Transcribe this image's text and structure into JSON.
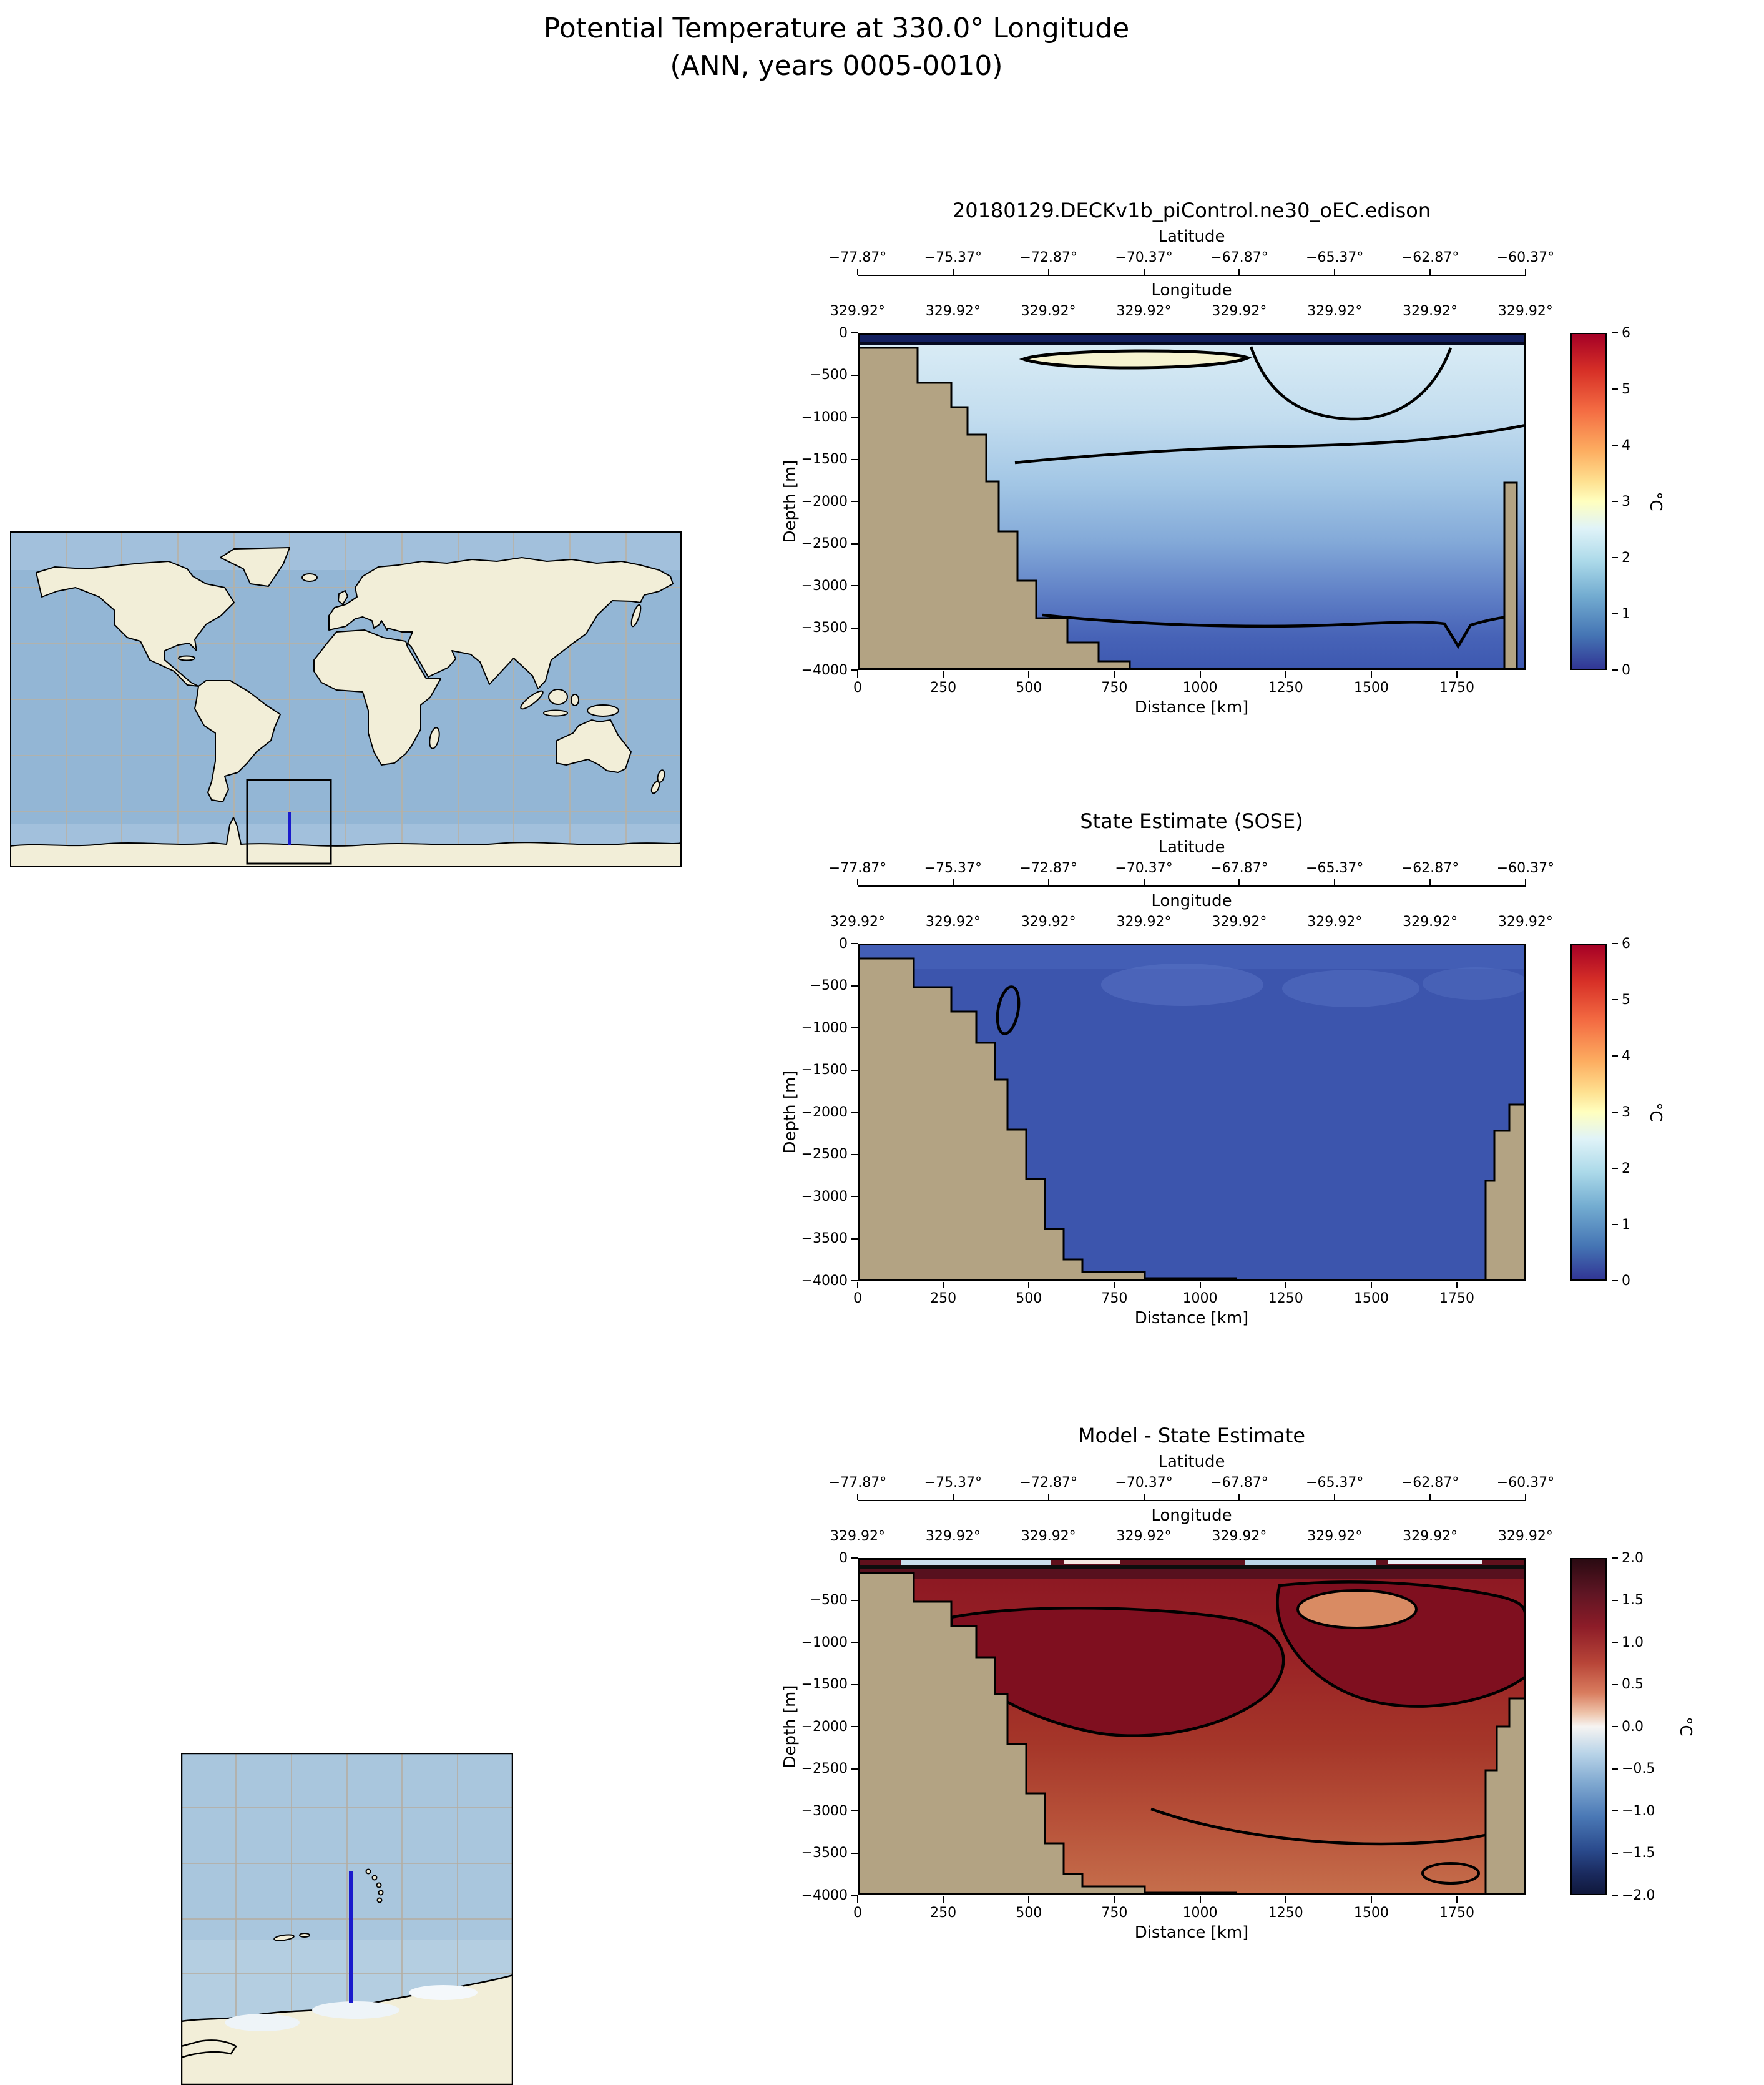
{
  "title": "Potential Temperature at 330.0° Longitude",
  "subtitle": "(ANN, years 0005-0010)",
  "panels": {
    "model": {
      "title": "20180129.DECKv1b_piControl.ne30_oEC.edison"
    },
    "sose": {
      "title": "State Estimate (SOSE)"
    },
    "diff": {
      "title": "Model - State Estimate"
    }
  },
  "axes": {
    "latitude_label": "Latitude",
    "latitude_ticks": [
      "−77.87°",
      "−75.37°",
      "−72.87°",
      "−70.37°",
      "−67.87°",
      "−65.37°",
      "−62.87°",
      "−60.37°"
    ],
    "longitude_label": "Longitude",
    "longitude_ticks": [
      "329.92°",
      "329.92°",
      "329.92°",
      "329.92°",
      "329.92°",
      "329.92°",
      "329.92°",
      "329.92°"
    ],
    "depth_label": "Depth [m]",
    "depth_ticks": [
      "0",
      "−500",
      "−1000",
      "−1500",
      "−2000",
      "−2500",
      "−3000",
      "−3500",
      "−4000"
    ],
    "distance_label": "Distance [km]",
    "distance_ticks": [
      "0",
      "250",
      "500",
      "750",
      "1000",
      "1250",
      "1500",
      "1750"
    ]
  },
  "colorbar_temp": {
    "label": "°C",
    "ticks": [
      "6",
      "5",
      "4",
      "3",
      "2",
      "1",
      "0"
    ]
  },
  "colorbar_diff": {
    "label": "°C",
    "ticks": [
      "2.0",
      "1.5",
      "1.0",
      "0.5",
      "0.0",
      "−0.5",
      "−1.0",
      "−1.5",
      "−2.0"
    ]
  },
  "colors": {
    "land": "#b3a383",
    "map_ocean": "#93b6d5",
    "map_land": "#f2eed8",
    "transect_line": "#1a1acc"
  },
  "chart_data": [
    {
      "type": "heatmap",
      "panel": "model",
      "title": "20180129.DECKv1b_piControl.ne30_oEC.edison",
      "xlabel": "Distance [km]",
      "ylabel": "Depth [m]",
      "x_range_km": [
        0,
        1950
      ],
      "y_range_m": [
        -4000,
        0
      ],
      "x_ticks_km": [
        0,
        250,
        500,
        750,
        1000,
        1250,
        1500,
        1750
      ],
      "y_ticks_m": [
        0,
        -500,
        -1000,
        -1500,
        -2000,
        -2500,
        -3000,
        -3500,
        -4000
      ],
      "latitude_ticks_deg": [
        -77.87,
        -75.37,
        -72.87,
        -70.37,
        -67.87,
        -65.37,
        -62.87,
        -60.37
      ],
      "longitude_deg": 329.92,
      "colormap": "RdYlBu_r",
      "color_range_C": [
        0,
        6
      ],
      "colorbar_label": "°C",
      "features": {
        "surface_layer": "cold ~0-0.5°C (dark navy) band in the top ~150 m across the section",
        "warm_subsurface_lens": "~2.5-3°C pale-yellow lens between ~450-1150 km at ~150-350 m depth, enclosed by a thick black contour",
        "interior": "~1.5-2°C light blue from 500-2500 m cooling with depth; black contour near -1300 m and near -3400 m",
        "bathymetry": "Antarctic continental-slope staircase from 0 km (surface) to ~800 km (4000 m); narrow topographic column near 1890 km below ~1800 m"
      },
      "depth_profile_estimate_C": {
        "0": 0.3,
        "-250": 2.6,
        "-500": 2.1,
        "-1000": 1.9,
        "-1500": 1.7,
        "-2000": 1.5,
        "-2500": 1.3,
        "-3000": 1.1,
        "-3500": 0.9,
        "-4000": 0.8
      }
    },
    {
      "type": "heatmap",
      "panel": "sose",
      "title": "State Estimate (SOSE)",
      "xlabel": "Distance [km]",
      "ylabel": "Depth [m]",
      "x_range_km": [
        0,
        1950
      ],
      "y_range_m": [
        -4000,
        0
      ],
      "x_ticks_km": [
        0,
        250,
        500,
        750,
        1000,
        1250,
        1500,
        1750
      ],
      "y_ticks_m": [
        0,
        -500,
        -1000,
        -1500,
        -2000,
        -2500,
        -3000,
        -3500,
        -4000
      ],
      "latitude_ticks_deg": [
        -77.87,
        -75.37,
        -72.87,
        -70.37,
        -67.87,
        -65.37,
        -62.87,
        -60.37
      ],
      "longitude_deg": 329.92,
      "colormap": "RdYlBu_r",
      "color_range_C": [
        0,
        6
      ],
      "colorbar_label": "°C",
      "features": {
        "interior": "nearly uniform cold water ~0.2-0.8°C (deep blue) over the whole section",
        "subsurface_patches": "faintly lighter ~1°C patches near 300-700 m between ~600-1700 km",
        "closed_contour": "small closed black contour near 440 km between ~500-1100 m depth",
        "bathymetry": "continental slope reaching the 4000 m bottom near 1100 km; stepped topographic column at the right edge below ~1900 m"
      },
      "depth_profile_estimate_C": {
        "0": 0.4,
        "-500": 0.8,
        "-1000": 0.6,
        "-2000": 0.5,
        "-3000": 0.4,
        "-4000": 0.3
      }
    },
    {
      "type": "heatmap",
      "panel": "diff",
      "title": "Model - State Estimate",
      "xlabel": "Distance [km]",
      "ylabel": "Depth [m]",
      "x_range_km": [
        0,
        1950
      ],
      "y_range_m": [
        -4000,
        0
      ],
      "x_ticks_km": [
        0,
        250,
        500,
        750,
        1000,
        1250,
        1500,
        1750
      ],
      "y_ticks_m": [
        0,
        -500,
        -1000,
        -1500,
        -2000,
        -2500,
        -3000,
        -3500,
        -4000
      ],
      "latitude_ticks_deg": [
        -77.87,
        -75.37,
        -72.87,
        -70.37,
        -67.87,
        -65.37,
        -62.87,
        -60.37
      ],
      "longitude_deg": 329.92,
      "colormap": "balance (diverging red-blue)",
      "color_range_C": [
        -2.0,
        2.0
      ],
      "colorbar_label": "°C",
      "features": {
        "overall": "model warmer than SOSE almost everywhere: +1.0 to +2.0°C (dark red) through most of the interior",
        "warm_cores": "cores exceeding +2°C outlined in black near 250-1150 km / 500-2200 m and 1250-1950 km / 300-1800 m, with a lighter ~+1°C pocket near 1300-1500 km / 400-600 m",
        "surface_strip": "thin mixed strip at the surface with -0.5 to +0.5°C patches (white / light blue) and black contours",
        "bottom_layer": "+0.8 to +1.2°C (lighter red-orange) below ~3000 m with wavy black contour near -3300 m"
      },
      "depth_profile_estimate_C": {
        "0": 0.0,
        "-500": 1.8,
        "-1000": 1.9,
        "-1500": 1.8,
        "-2000": 1.6,
        "-2500": 1.4,
        "-3000": 1.2,
        "-3500": 1.0,
        "-4000": 0.9
      }
    }
  ],
  "maps": {
    "world_map": {
      "description": "Global map with a black box marking the study region near 330°E between ~45°S and the Antarctic coast; blue transect line inside the box"
    },
    "inset_map": {
      "description": "Zoom of the boxed region (Weddell Sea sector) showing the Antarctic coastline, small island arcs, and the blue transect line at 330°E"
    }
  }
}
